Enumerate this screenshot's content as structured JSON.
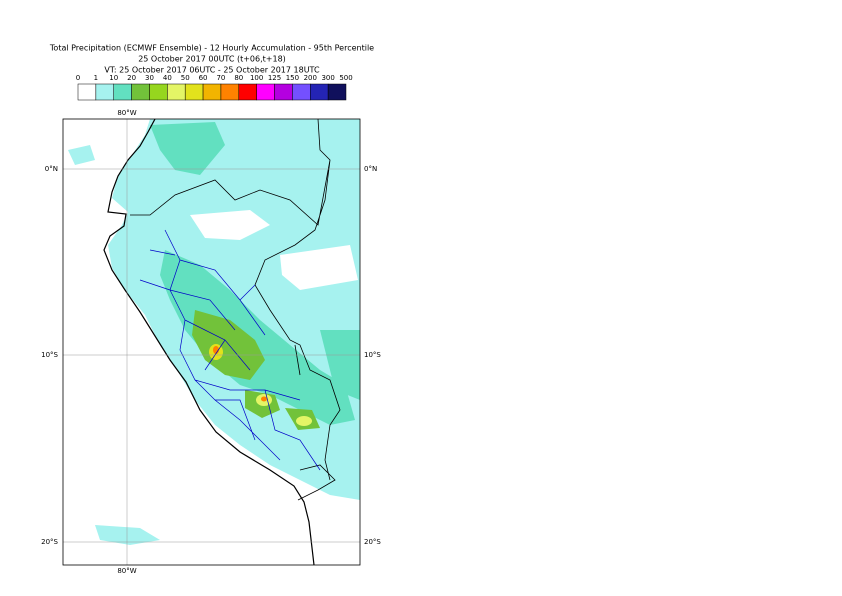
{
  "header": {
    "title": "Total Precipitation (ECMWF Ensemble) - 12 Hourly Accumulation - 95th Percentile",
    "run": "25 October 2017 00UTC (t+06,t+18)",
    "valid": "VT: 25 October 2017 06UTC - 25 October 2017 18UTC"
  },
  "legend": {
    "bounds": [
      0,
      1,
      10,
      20,
      30,
      40,
      50,
      60,
      70,
      80,
      100,
      125,
      150,
      200,
      300,
      500
    ],
    "colors": [
      "#ffffff",
      "#a6f2ef",
      "#62e0c0",
      "#72c23a",
      "#96d61e",
      "#e4f566",
      "#e2e21c",
      "#f2b400",
      "#ff8200",
      "#ff0000",
      "#ff00ff",
      "#b400e0",
      "#7450ff",
      "#2424b4",
      "#10105c"
    ]
  },
  "map": {
    "lon_labels": [
      "80°W"
    ],
    "lat_labels": [
      "0°N",
      "10°S",
      "20°S"
    ]
  }
}
